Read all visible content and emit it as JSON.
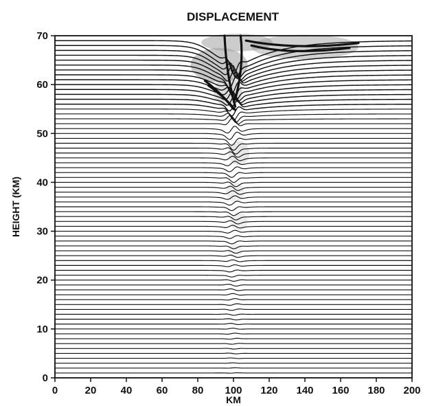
{
  "chart_data": {
    "type": "line",
    "title": "DISPLACEMENT",
    "xlabel": "KM",
    "ylabel": "HEIGHT (KM)",
    "xlim": [
      0,
      200
    ],
    "ylim": [
      0,
      70
    ],
    "x_ticks": [
      0,
      20,
      40,
      60,
      80,
      100,
      120,
      140,
      160,
      180,
      200
    ],
    "y_ticks": [
      0,
      10,
      20,
      30,
      40,
      50,
      60,
      70
    ],
    "grid": false,
    "series_description_levels_km": [
      1,
      2,
      3,
      4,
      5,
      6,
      7,
      8,
      9,
      10,
      11,
      12,
      13,
      14,
      15,
      16,
      17,
      18,
      19,
      20,
      21,
      22,
      23,
      24,
      25,
      26,
      27,
      28,
      29,
      30,
      31,
      32,
      33,
      34,
      35,
      36,
      37,
      38,
      39,
      40,
      41,
      42,
      43,
      44,
      45,
      46,
      47,
      48,
      49,
      50,
      51,
      52,
      53,
      54,
      55,
      56,
      57,
      58,
      59,
      60,
      61,
      62,
      63,
      64,
      65,
      66,
      67,
      68,
      69
    ],
    "disturbance_center_km": 100,
    "colors": {
      "line": "#111111",
      "shade": "#9a9a9a"
    }
  }
}
